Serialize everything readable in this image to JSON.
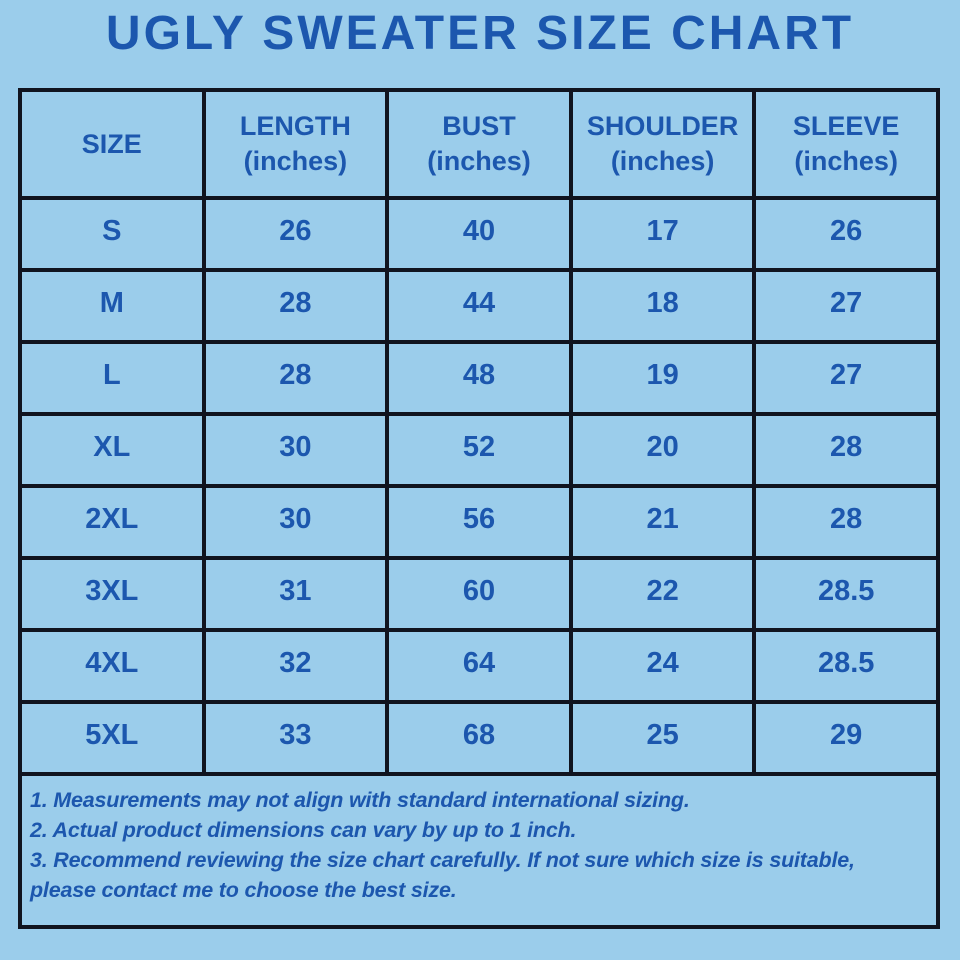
{
  "page": {
    "title": "UGLY SWEATER SIZE CHART",
    "background_color": "#9bcdeb",
    "text_color": "#1c57ae",
    "border_color": "#10141f"
  },
  "table": {
    "headers": [
      {
        "line1": "SIZE",
        "line2": ""
      },
      {
        "line1": "LENGTH",
        "line2": "(inches)"
      },
      {
        "line1": "BUST",
        "line2": "(inches)"
      },
      {
        "line1": "SHOULDER",
        "line2": "(inches)"
      },
      {
        "line1": "SLEEVE",
        "line2": "(inches)"
      }
    ],
    "rows": [
      [
        "S",
        "26",
        "40",
        "17",
        "26"
      ],
      [
        "M",
        "28",
        "44",
        "18",
        "27"
      ],
      [
        "L",
        "28",
        "48",
        "19",
        "27"
      ],
      [
        "XL",
        "30",
        "52",
        "20",
        "28"
      ],
      [
        "2XL",
        "30",
        "56",
        "21",
        "28"
      ],
      [
        "3XL",
        "31",
        "60",
        "22",
        "28.5"
      ],
      [
        "4XL",
        "32",
        "64",
        "24",
        "28.5"
      ],
      [
        "5XL",
        "33",
        "68",
        "25",
        "29"
      ]
    ]
  },
  "notes": [
    "1. Measurements may not align with standard international sizing.",
    "2. Actual product dimensions can vary by up to 1 inch.",
    "3. Recommend reviewing the size chart carefully. If not sure which size is suitable, please contact me to choose the best size."
  ],
  "chart_data": {
    "type": "table",
    "title": "UGLY SWEATER SIZE CHART",
    "columns": [
      "SIZE",
      "LENGTH (inches)",
      "BUST (inches)",
      "SHOULDER (inches)",
      "SLEEVE (inches)"
    ],
    "rows": [
      [
        "S",
        26,
        40,
        17,
        26
      ],
      [
        "M",
        28,
        44,
        18,
        27
      ],
      [
        "L",
        28,
        48,
        19,
        27
      ],
      [
        "XL",
        30,
        52,
        20,
        28
      ],
      [
        "2XL",
        30,
        56,
        21,
        28
      ],
      [
        "3XL",
        31,
        60,
        22,
        28.5
      ],
      [
        "4XL",
        32,
        64,
        24,
        28.5
      ],
      [
        "5XL",
        33,
        68,
        25,
        29
      ]
    ],
    "footnotes": [
      "1. Measurements may not align with standard international sizing.",
      "2. Actual product dimensions can vary by up to 1 inch.",
      "3. Recommend reviewing the size chart carefully. If not sure which size is suitable, please contact me to choose the best size."
    ]
  }
}
